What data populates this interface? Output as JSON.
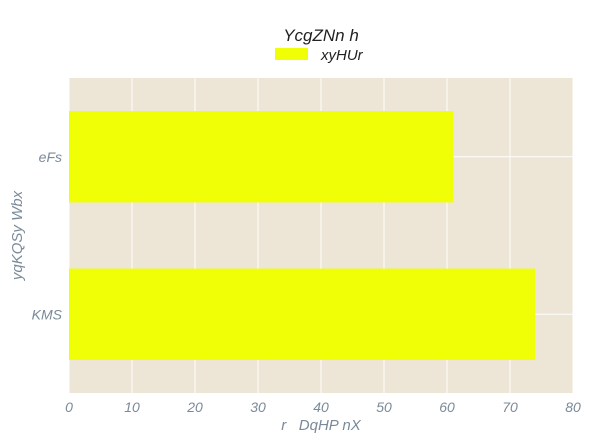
{
  "chart_data": {
    "type": "bar",
    "orientation": "horizontal",
    "title": "YcgZNn h",
    "xlabel": "r   DqHP nX",
    "ylabel": "yqKQSy Wbx",
    "categories": [
      "eFs",
      "KMS"
    ],
    "series": [
      {
        "name": "xyHUr",
        "values": [
          61,
          74
        ],
        "color": "#f0ff05"
      }
    ],
    "xlim": [
      0,
      80
    ],
    "xticks": [
      "0",
      "10",
      "20",
      "30",
      "40",
      "50",
      "60",
      "70",
      "80"
    ],
    "grid": true,
    "legend_position": "top-center",
    "colors": {
      "plot_background": "#ede5d5",
      "grid": "#ffffff",
      "tick_label": "#7a8a99",
      "title": "#222222"
    }
  }
}
